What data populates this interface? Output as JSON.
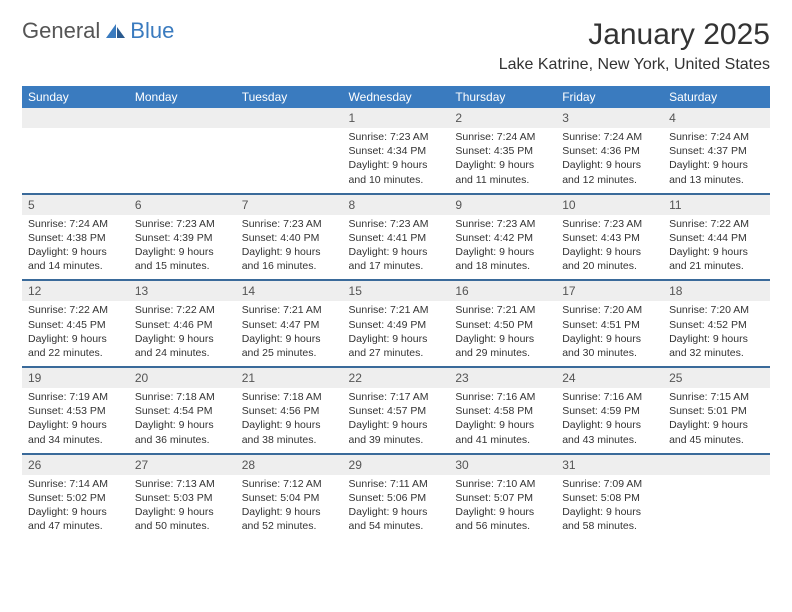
{
  "logo": {
    "general": "General",
    "blue": "Blue"
  },
  "title": "January 2025",
  "location": "Lake Katrine, New York, United States",
  "dayNames": [
    "Sunday",
    "Monday",
    "Tuesday",
    "Wednesday",
    "Thursday",
    "Friday",
    "Saturday"
  ],
  "colors": {
    "headerBg": "#3a7bbf",
    "headerText": "#ffffff",
    "dayNumBg": "#eeeeee",
    "separator": "#3a6a9a",
    "bodyText": "#333333",
    "logoBlue": "#3a7bbf",
    "logoGray": "#555555"
  },
  "weeks": [
    {
      "nums": [
        "",
        "",
        "",
        "1",
        "2",
        "3",
        "4"
      ],
      "cells": [
        {
          "sunrise": "",
          "sunset": "",
          "daylight": ""
        },
        {
          "sunrise": "",
          "sunset": "",
          "daylight": ""
        },
        {
          "sunrise": "",
          "sunset": "",
          "daylight": ""
        },
        {
          "sunrise": "Sunrise: 7:23 AM",
          "sunset": "Sunset: 4:34 PM",
          "daylight": "Daylight: 9 hours and 10 minutes."
        },
        {
          "sunrise": "Sunrise: 7:24 AM",
          "sunset": "Sunset: 4:35 PM",
          "daylight": "Daylight: 9 hours and 11 minutes."
        },
        {
          "sunrise": "Sunrise: 7:24 AM",
          "sunset": "Sunset: 4:36 PM",
          "daylight": "Daylight: 9 hours and 12 minutes."
        },
        {
          "sunrise": "Sunrise: 7:24 AM",
          "sunset": "Sunset: 4:37 PM",
          "daylight": "Daylight: 9 hours and 13 minutes."
        }
      ]
    },
    {
      "nums": [
        "5",
        "6",
        "7",
        "8",
        "9",
        "10",
        "11"
      ],
      "cells": [
        {
          "sunrise": "Sunrise: 7:24 AM",
          "sunset": "Sunset: 4:38 PM",
          "daylight": "Daylight: 9 hours and 14 minutes."
        },
        {
          "sunrise": "Sunrise: 7:23 AM",
          "sunset": "Sunset: 4:39 PM",
          "daylight": "Daylight: 9 hours and 15 minutes."
        },
        {
          "sunrise": "Sunrise: 7:23 AM",
          "sunset": "Sunset: 4:40 PM",
          "daylight": "Daylight: 9 hours and 16 minutes."
        },
        {
          "sunrise": "Sunrise: 7:23 AM",
          "sunset": "Sunset: 4:41 PM",
          "daylight": "Daylight: 9 hours and 17 minutes."
        },
        {
          "sunrise": "Sunrise: 7:23 AM",
          "sunset": "Sunset: 4:42 PM",
          "daylight": "Daylight: 9 hours and 18 minutes."
        },
        {
          "sunrise": "Sunrise: 7:23 AM",
          "sunset": "Sunset: 4:43 PM",
          "daylight": "Daylight: 9 hours and 20 minutes."
        },
        {
          "sunrise": "Sunrise: 7:22 AM",
          "sunset": "Sunset: 4:44 PM",
          "daylight": "Daylight: 9 hours and 21 minutes."
        }
      ]
    },
    {
      "nums": [
        "12",
        "13",
        "14",
        "15",
        "16",
        "17",
        "18"
      ],
      "cells": [
        {
          "sunrise": "Sunrise: 7:22 AM",
          "sunset": "Sunset: 4:45 PM",
          "daylight": "Daylight: 9 hours and 22 minutes."
        },
        {
          "sunrise": "Sunrise: 7:22 AM",
          "sunset": "Sunset: 4:46 PM",
          "daylight": "Daylight: 9 hours and 24 minutes."
        },
        {
          "sunrise": "Sunrise: 7:21 AM",
          "sunset": "Sunset: 4:47 PM",
          "daylight": "Daylight: 9 hours and 25 minutes."
        },
        {
          "sunrise": "Sunrise: 7:21 AM",
          "sunset": "Sunset: 4:49 PM",
          "daylight": "Daylight: 9 hours and 27 minutes."
        },
        {
          "sunrise": "Sunrise: 7:21 AM",
          "sunset": "Sunset: 4:50 PM",
          "daylight": "Daylight: 9 hours and 29 minutes."
        },
        {
          "sunrise": "Sunrise: 7:20 AM",
          "sunset": "Sunset: 4:51 PM",
          "daylight": "Daylight: 9 hours and 30 minutes."
        },
        {
          "sunrise": "Sunrise: 7:20 AM",
          "sunset": "Sunset: 4:52 PM",
          "daylight": "Daylight: 9 hours and 32 minutes."
        }
      ]
    },
    {
      "nums": [
        "19",
        "20",
        "21",
        "22",
        "23",
        "24",
        "25"
      ],
      "cells": [
        {
          "sunrise": "Sunrise: 7:19 AM",
          "sunset": "Sunset: 4:53 PM",
          "daylight": "Daylight: 9 hours and 34 minutes."
        },
        {
          "sunrise": "Sunrise: 7:18 AM",
          "sunset": "Sunset: 4:54 PM",
          "daylight": "Daylight: 9 hours and 36 minutes."
        },
        {
          "sunrise": "Sunrise: 7:18 AM",
          "sunset": "Sunset: 4:56 PM",
          "daylight": "Daylight: 9 hours and 38 minutes."
        },
        {
          "sunrise": "Sunrise: 7:17 AM",
          "sunset": "Sunset: 4:57 PM",
          "daylight": "Daylight: 9 hours and 39 minutes."
        },
        {
          "sunrise": "Sunrise: 7:16 AM",
          "sunset": "Sunset: 4:58 PM",
          "daylight": "Daylight: 9 hours and 41 minutes."
        },
        {
          "sunrise": "Sunrise: 7:16 AM",
          "sunset": "Sunset: 4:59 PM",
          "daylight": "Daylight: 9 hours and 43 minutes."
        },
        {
          "sunrise": "Sunrise: 7:15 AM",
          "sunset": "Sunset: 5:01 PM",
          "daylight": "Daylight: 9 hours and 45 minutes."
        }
      ]
    },
    {
      "nums": [
        "26",
        "27",
        "28",
        "29",
        "30",
        "31",
        ""
      ],
      "cells": [
        {
          "sunrise": "Sunrise: 7:14 AM",
          "sunset": "Sunset: 5:02 PM",
          "daylight": "Daylight: 9 hours and 47 minutes."
        },
        {
          "sunrise": "Sunrise: 7:13 AM",
          "sunset": "Sunset: 5:03 PM",
          "daylight": "Daylight: 9 hours and 50 minutes."
        },
        {
          "sunrise": "Sunrise: 7:12 AM",
          "sunset": "Sunset: 5:04 PM",
          "daylight": "Daylight: 9 hours and 52 minutes."
        },
        {
          "sunrise": "Sunrise: 7:11 AM",
          "sunset": "Sunset: 5:06 PM",
          "daylight": "Daylight: 9 hours and 54 minutes."
        },
        {
          "sunrise": "Sunrise: 7:10 AM",
          "sunset": "Sunset: 5:07 PM",
          "daylight": "Daylight: 9 hours and 56 minutes."
        },
        {
          "sunrise": "Sunrise: 7:09 AM",
          "sunset": "Sunset: 5:08 PM",
          "daylight": "Daylight: 9 hours and 58 minutes."
        },
        {
          "sunrise": "",
          "sunset": "",
          "daylight": ""
        }
      ]
    }
  ]
}
